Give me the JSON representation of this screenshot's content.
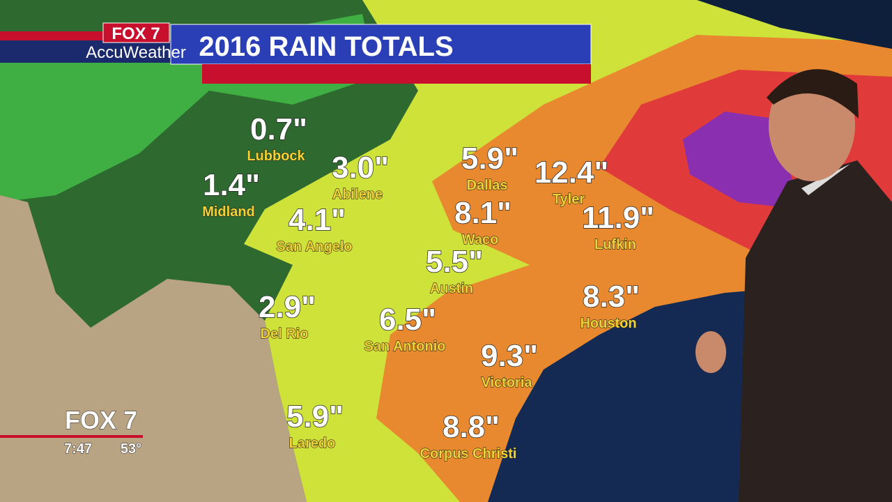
{
  "header": {
    "station": "FOX 7",
    "brand": "AccuWeather",
    "title": "2016 RAIN TOTALS"
  },
  "cities": [
    {
      "amount": "0.7\"",
      "name": "Lubbock"
    },
    {
      "amount": "1.4\"",
      "name": "Midland"
    },
    {
      "amount": "3.0\"",
      "name": "Abilene"
    },
    {
      "amount": "4.1\"",
      "name": "San Angelo"
    },
    {
      "amount": "5.9\"",
      "name": "Dallas"
    },
    {
      "amount": "12.4\"",
      "name": "Tyler"
    },
    {
      "amount": "8.1\"",
      "name": "Waco"
    },
    {
      "amount": "11.9\"",
      "name": "Lufkin"
    },
    {
      "amount": "5.5\"",
      "name": "Austin"
    },
    {
      "amount": "2.9\"",
      "name": "Del Rio"
    },
    {
      "amount": "6.5\"",
      "name": "San Antonio"
    },
    {
      "amount": "8.3\"",
      "name": "Houston"
    },
    {
      "amount": "9.3\"",
      "name": "Victoria"
    },
    {
      "amount": "5.9\"",
      "name": "Laredo"
    },
    {
      "amount": "8.8\"",
      "name": "Corpus Christi"
    }
  ],
  "bug": {
    "station": "FOX 7",
    "time": "7:47",
    "temp": "53°"
  }
}
